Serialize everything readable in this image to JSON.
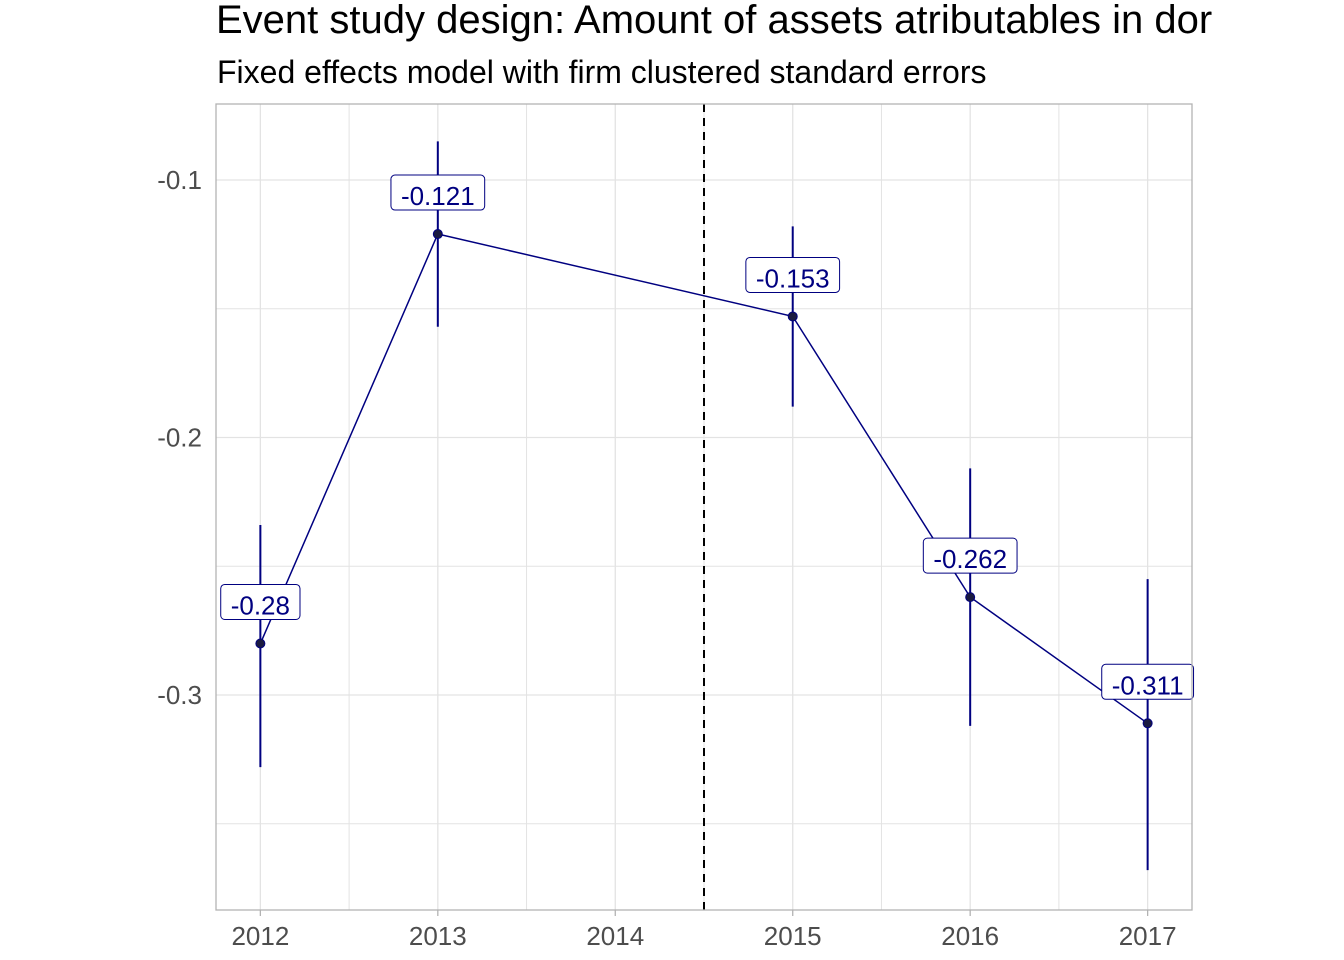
{
  "chart_data": {
    "type": "line",
    "title": "Event study design: Amount of assets atributables in dor",
    "subtitle": "Fixed effects model with firm clustered standard errors",
    "xlabel": "",
    "ylabel": "",
    "x_ticks": [
      "2012",
      "2013",
      "2014",
      "2015",
      "2016",
      "2017"
    ],
    "y_ticks": [
      -0.1,
      -0.2,
      -0.3
    ],
    "y_tick_labels": [
      "-0.1",
      "-0.2",
      "-0.3"
    ],
    "xlim": [
      2011.75,
      2017.25
    ],
    "ylim": [
      -0.3835,
      -0.0705
    ],
    "vline_x": 2014.5,
    "vline_style": "dashed",
    "grid": true,
    "series": [
      {
        "points": [
          {
            "x": 2012,
            "y": -0.28,
            "lower": -0.328,
            "upper": -0.234,
            "label": "-0.28"
          },
          {
            "x": 2013,
            "y": -0.121,
            "lower": -0.157,
            "upper": -0.085,
            "label": "-0.121"
          },
          {
            "x": 2015,
            "y": -0.153,
            "lower": -0.188,
            "upper": -0.118,
            "label": "-0.153"
          },
          {
            "x": 2016,
            "y": -0.262,
            "lower": -0.312,
            "upper": -0.212,
            "label": "-0.262"
          },
          {
            "x": 2017,
            "y": -0.311,
            "lower": -0.368,
            "upper": -0.255,
            "label": "-0.311"
          }
        ]
      }
    ],
    "colors": {
      "series": "#000080",
      "point": "#1a1a40",
      "grid": "#e3e3e3",
      "axis_text": "#4d4d4d",
      "panel_border": "#b3b3b3",
      "vline": "#000000"
    }
  }
}
